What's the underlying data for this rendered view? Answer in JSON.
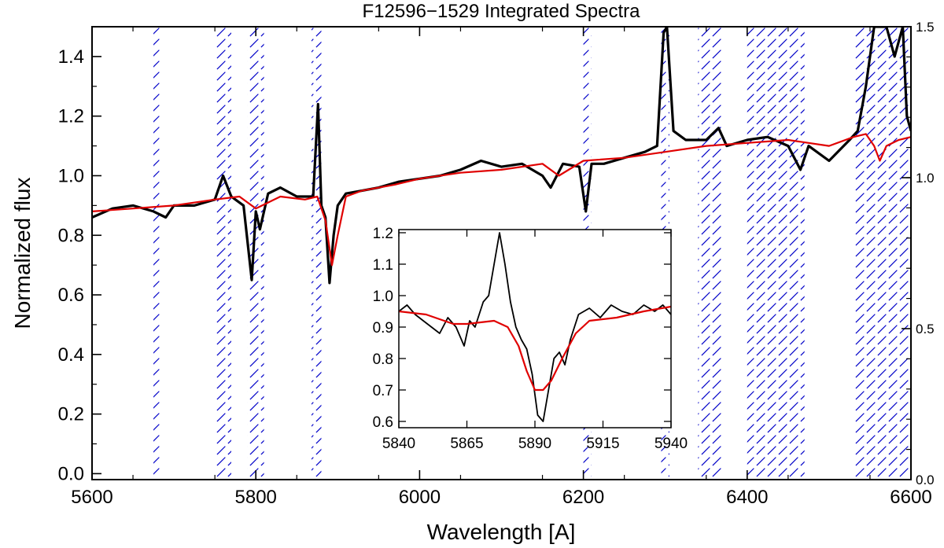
{
  "chart_data": {
    "type": "line",
    "title": "F12596−1529 Integrated Spectra",
    "xlabel": "Wavelength [A]",
    "ylabel": "Normalized flux",
    "xlim": [
      5600,
      6600
    ],
    "ylim": [
      -0.02,
      1.5
    ],
    "x_ticks": [
      "5600",
      "5800",
      "6000",
      "6200",
      "6400",
      "6600"
    ],
    "y_ticks": [
      "0.0",
      "0.2",
      "0.4",
      "0.6",
      "0.8",
      "1.0",
      "1.2",
      "1.4"
    ],
    "y_tick_values": [
      0,
      0.2,
      0.4,
      0.6,
      0.8,
      1.0,
      1.2,
      1.4
    ],
    "right_axis": {
      "ylim": [
        0.0,
        1.5
      ],
      "ticks": [
        "0.0",
        "0.5",
        "1.0",
        "1.5"
      ],
      "tick_values": [
        0.0,
        0.5,
        1.0,
        1.5
      ]
    },
    "colors": {
      "observed": "#000000",
      "model": "#e00000",
      "masked_regions": "#0000c8"
    },
    "masked_regions": [
      [
        5675,
        5685
      ],
      [
        5750,
        5770
      ],
      [
        5790,
        5810
      ],
      [
        5868,
        5880
      ],
      [
        6200,
        6210
      ],
      [
        6295,
        6305
      ],
      [
        6340,
        6370
      ],
      [
        6400,
        6470
      ],
      [
        6530,
        6600
      ]
    ],
    "series": [
      {
        "x": [
          5600,
          5625,
          5650,
          5675,
          5690,
          5700,
          5725,
          5750,
          5760,
          5770,
          5785,
          5795,
          5800,
          5805,
          5815,
          5830,
          5850,
          5870,
          5876,
          5880,
          5885,
          5890,
          5895,
          5900,
          5910,
          5930,
          5950,
          5975,
          6000,
          6025,
          6050,
          6075,
          6100,
          6125,
          6150,
          6160,
          6175,
          6195,
          6203,
          6210,
          6225,
          6250,
          6275,
          6290,
          6298,
          6302,
          6310,
          6325,
          6350,
          6365,
          6375,
          6400,
          6425,
          6450,
          6465,
          6475,
          6500,
          6525,
          6535,
          6545,
          6555,
          6562,
          6570,
          6580,
          6590,
          6595,
          6600
        ],
        "values": [
          0.86,
          0.89,
          0.9,
          0.88,
          0.86,
          0.9,
          0.9,
          0.92,
          1.0,
          0.93,
          0.9,
          0.65,
          0.88,
          0.82,
          0.94,
          0.96,
          0.93,
          0.93,
          1.24,
          0.9,
          0.86,
          0.64,
          0.8,
          0.9,
          0.94,
          0.95,
          0.96,
          0.98,
          0.99,
          1.0,
          1.02,
          1.05,
          1.03,
          1.04,
          1.0,
          0.96,
          1.04,
          1.03,
          0.88,
          1.04,
          1.04,
          1.06,
          1.08,
          1.1,
          1.48,
          1.5,
          1.15,
          1.12,
          1.12,
          1.16,
          1.1,
          1.12,
          1.13,
          1.1,
          1.02,
          1.1,
          1.05,
          1.12,
          1.15,
          1.3,
          1.5,
          1.5,
          1.5,
          1.4,
          1.5,
          1.2,
          1.15
        ]
      },
      {
        "x": [
          5600,
          5650,
          5700,
          5750,
          5780,
          5800,
          5830,
          5860,
          5875,
          5885,
          5893,
          5900,
          5910,
          5930,
          5970,
          6000,
          6050,
          6100,
          6150,
          6170,
          6200,
          6250,
          6300,
          6350,
          6400,
          6450,
          6500,
          6530,
          6545,
          6555,
          6562,
          6570,
          6585,
          6600
        ],
        "values": [
          0.88,
          0.89,
          0.9,
          0.92,
          0.93,
          0.89,
          0.93,
          0.92,
          0.93,
          0.85,
          0.7,
          0.8,
          0.93,
          0.95,
          0.97,
          0.99,
          1.01,
          1.02,
          1.04,
          1.0,
          1.05,
          1.06,
          1.08,
          1.1,
          1.11,
          1.12,
          1.1,
          1.13,
          1.14,
          1.1,
          1.05,
          1.1,
          1.12,
          1.13
        ]
      }
    ],
    "inset": {
      "type": "line",
      "xlim": [
        5840,
        5940
      ],
      "ylim": [
        0.58,
        1.21
      ],
      "x_ticks": [
        "5840",
        "5865",
        "5890",
        "5915",
        "5940"
      ],
      "x_tick_values": [
        5840,
        5865,
        5890,
        5915,
        5940
      ],
      "y_ticks": [
        "0.6",
        "0.7",
        "0.8",
        "0.9",
        "1.0",
        "1.1",
        "1.2"
      ],
      "y_tick_values": [
        0.6,
        0.7,
        0.8,
        0.9,
        1.0,
        1.1,
        1.2
      ],
      "series": [
        {
          "x": [
            5840,
            5843,
            5846,
            5849,
            5852,
            5855,
            5858,
            5861,
            5864,
            5866,
            5868,
            5871,
            5873,
            5875,
            5877,
            5879,
            5881,
            5883,
            5885,
            5887,
            5889,
            5891,
            5893,
            5895,
            5897,
            5899,
            5901,
            5903,
            5906,
            5910,
            5914,
            5918,
            5922,
            5926,
            5930,
            5934,
            5937,
            5940
          ],
          "values": [
            0.95,
            0.97,
            0.94,
            0.92,
            0.9,
            0.88,
            0.93,
            0.9,
            0.84,
            0.92,
            0.9,
            0.98,
            1.0,
            1.1,
            1.2,
            1.1,
            0.98,
            0.9,
            0.86,
            0.83,
            0.75,
            0.62,
            0.6,
            0.7,
            0.8,
            0.82,
            0.78,
            0.86,
            0.94,
            0.96,
            0.93,
            0.97,
            0.95,
            0.94,
            0.97,
            0.95,
            0.97,
            0.94
          ]
        },
        {
          "x": [
            5840,
            5850,
            5860,
            5865,
            5875,
            5880,
            5884,
            5887,
            5890,
            5893,
            5896,
            5900,
            5905,
            5910,
            5920,
            5930,
            5940
          ],
          "values": [
            0.95,
            0.94,
            0.91,
            0.91,
            0.92,
            0.9,
            0.84,
            0.76,
            0.7,
            0.7,
            0.73,
            0.8,
            0.88,
            0.92,
            0.93,
            0.95,
            0.965
          ]
        }
      ]
    }
  }
}
